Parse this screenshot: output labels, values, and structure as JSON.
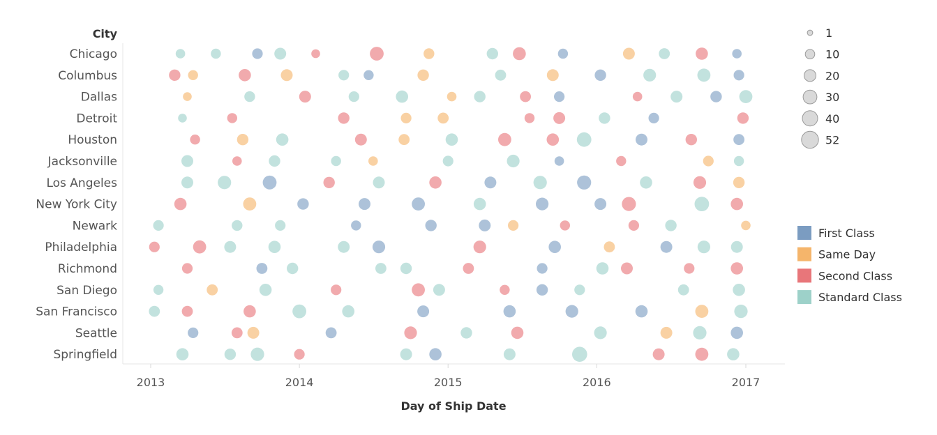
{
  "chart_data": {
    "type": "scatter",
    "title": "",
    "row_axis_title": "City",
    "xlabel": "Day of Ship Date",
    "x_ticks": [
      "2013",
      "2014",
      "2015",
      "2016",
      "2017"
    ],
    "xlim": [
      "2013-01-01",
      "2017-01-01"
    ],
    "rows": [
      "Chicago",
      "Columbus",
      "Dallas",
      "Detroit",
      "Houston",
      "Jacksonville",
      "Los Angeles",
      "New York City",
      "Newark",
      "Philadelphia",
      "Richmond",
      "San Diego",
      "San Francisco",
      "Seattle",
      "Springfield"
    ],
    "size_legend": [
      1,
      10,
      20,
      30,
      40,
      52
    ],
    "color_legend": [
      {
        "name": "First Class",
        "color": "#7b9cc1"
      },
      {
        "name": "Same Day",
        "color": "#f5b56b"
      },
      {
        "name": "Second Class",
        "color": "#e8767a"
      },
      {
        "name": "Standard Class",
        "color": "#9dd1c9"
      }
    ],
    "marks_note": "each point: [row index, date, ship mode index, size value]",
    "points": [
      [
        0,
        "2013-03-15",
        3,
        10
      ],
      [
        0,
        "2013-06-10",
        3,
        12
      ],
      [
        0,
        "2013-09-20",
        0,
        14
      ],
      [
        0,
        "2013-11-15",
        3,
        20
      ],
      [
        0,
        "2014-02-10",
        2,
        8
      ],
      [
        0,
        "2014-07-10",
        2,
        30
      ],
      [
        0,
        "2014-11-15",
        1,
        15
      ],
      [
        0,
        "2015-04-20",
        3,
        18
      ],
      [
        0,
        "2015-06-25",
        2,
        25
      ],
      [
        0,
        "2015-10-10",
        0,
        12
      ],
      [
        0,
        "2016-03-20",
        1,
        20
      ],
      [
        0,
        "2016-06-15",
        3,
        16
      ],
      [
        0,
        "2016-09-15",
        2,
        22
      ],
      [
        0,
        "2016-12-10",
        0,
        10
      ],
      [
        1,
        "2013-03-01",
        2,
        18
      ],
      [
        1,
        "2013-04-15",
        1,
        12
      ],
      [
        1,
        "2013-08-20",
        2,
        22
      ],
      [
        1,
        "2013-12-01",
        1,
        20
      ],
      [
        1,
        "2014-04-20",
        3,
        14
      ],
      [
        1,
        "2014-06-20",
        0,
        12
      ],
      [
        1,
        "2014-11-01",
        1,
        18
      ],
      [
        1,
        "2015-05-10",
        3,
        16
      ],
      [
        1,
        "2015-09-15",
        1,
        20
      ],
      [
        1,
        "2016-01-10",
        0,
        18
      ],
      [
        1,
        "2016-05-10",
        3,
        24
      ],
      [
        1,
        "2016-09-20",
        3,
        26
      ],
      [
        1,
        "2016-12-15",
        0,
        14
      ],
      [
        2,
        "2013-04-01",
        1,
        8
      ],
      [
        2,
        "2013-09-01",
        3,
        15
      ],
      [
        2,
        "2014-01-15",
        2,
        20
      ],
      [
        2,
        "2014-05-15",
        3,
        14
      ],
      [
        2,
        "2014-09-10",
        3,
        22
      ],
      [
        2,
        "2015-01-10",
        1,
        10
      ],
      [
        2,
        "2015-03-20",
        3,
        18
      ],
      [
        2,
        "2015-07-10",
        2,
        16
      ],
      [
        2,
        "2015-10-01",
        0,
        14
      ],
      [
        2,
        "2016-04-10",
        2,
        10
      ],
      [
        2,
        "2016-07-15",
        3,
        20
      ],
      [
        2,
        "2016-10-20",
        0,
        18
      ],
      [
        2,
        "2017-01-01",
        3,
        26
      ],
      [
        3,
        "2013-03-20",
        3,
        8
      ],
      [
        3,
        "2013-07-20",
        2,
        12
      ],
      [
        3,
        "2014-04-20",
        2,
        18
      ],
      [
        3,
        "2014-09-20",
        1,
        14
      ],
      [
        3,
        "2014-12-20",
        1,
        16
      ],
      [
        3,
        "2015-07-20",
        2,
        12
      ],
      [
        3,
        "2015-10-01",
        2,
        20
      ],
      [
        3,
        "2016-01-20",
        3,
        18
      ],
      [
        3,
        "2016-05-20",
        0,
        14
      ],
      [
        3,
        "2016-12-25",
        2,
        18
      ],
      [
        4,
        "2013-04-20",
        2,
        12
      ],
      [
        4,
        "2013-08-15",
        1,
        18
      ],
      [
        4,
        "2013-11-20",
        3,
        22
      ],
      [
        4,
        "2014-06-01",
        2,
        20
      ],
      [
        4,
        "2014-09-15",
        1,
        16
      ],
      [
        4,
        "2015-01-10",
        3,
        22
      ],
      [
        4,
        "2015-05-20",
        2,
        26
      ],
      [
        4,
        "2015-09-15",
        2,
        22
      ],
      [
        4,
        "2015-12-01",
        3,
        34
      ],
      [
        4,
        "2016-04-20",
        0,
        20
      ],
      [
        4,
        "2016-08-20",
        2,
        18
      ],
      [
        4,
        "2016-12-15",
        0,
        16
      ],
      [
        5,
        "2013-04-01",
        3,
        20
      ],
      [
        5,
        "2013-08-01",
        2,
        10
      ],
      [
        5,
        "2013-11-01",
        3,
        18
      ],
      [
        5,
        "2014-04-01",
        3,
        12
      ],
      [
        5,
        "2014-07-01",
        1,
        10
      ],
      [
        5,
        "2015-01-01",
        3,
        14
      ],
      [
        5,
        "2015-06-10",
        3,
        24
      ],
      [
        5,
        "2015-10-01",
        0,
        10
      ],
      [
        5,
        "2016-03-01",
        2,
        12
      ],
      [
        5,
        "2016-10-01",
        1,
        14
      ],
      [
        5,
        "2016-12-15",
        3,
        12
      ],
      [
        6,
        "2013-04-01",
        3,
        20
      ],
      [
        6,
        "2013-07-01",
        3,
        28
      ],
      [
        6,
        "2013-10-20",
        0,
        30
      ],
      [
        6,
        "2014-03-15",
        2,
        18
      ],
      [
        6,
        "2014-07-15",
        3,
        20
      ],
      [
        6,
        "2014-12-01",
        2,
        22
      ],
      [
        6,
        "2015-04-15",
        0,
        20
      ],
      [
        6,
        "2015-08-15",
        3,
        28
      ],
      [
        6,
        "2015-12-01",
        0,
        32
      ],
      [
        6,
        "2016-05-01",
        3,
        22
      ],
      [
        6,
        "2016-09-10",
        2,
        24
      ],
      [
        6,
        "2016-12-15",
        1,
        18
      ],
      [
        7,
        "2013-03-15",
        2,
        22
      ],
      [
        7,
        "2013-09-01",
        1,
        26
      ],
      [
        7,
        "2014-01-10",
        0,
        18
      ],
      [
        7,
        "2014-06-10",
        0,
        20
      ],
      [
        7,
        "2014-10-20",
        0,
        26
      ],
      [
        7,
        "2015-03-20",
        3,
        22
      ],
      [
        7,
        "2015-08-20",
        0,
        24
      ],
      [
        7,
        "2016-01-10",
        0,
        20
      ],
      [
        7,
        "2016-03-20",
        2,
        32
      ],
      [
        7,
        "2016-09-15",
        3,
        34
      ],
      [
        7,
        "2016-12-10",
        2,
        22
      ],
      [
        8,
        "2013-01-20",
        3,
        14
      ],
      [
        8,
        "2013-08-01",
        3,
        15
      ],
      [
        8,
        "2013-11-15",
        3,
        14
      ],
      [
        8,
        "2014-05-20",
        0,
        12
      ],
      [
        8,
        "2014-11-20",
        0,
        18
      ],
      [
        8,
        "2015-04-01",
        0,
        20
      ],
      [
        8,
        "2015-06-10",
        1,
        14
      ],
      [
        8,
        "2015-10-15",
        2,
        12
      ],
      [
        8,
        "2016-04-01",
        2,
        14
      ],
      [
        8,
        "2016-07-01",
        3,
        18
      ],
      [
        8,
        "2017-01-01",
        1,
        10
      ],
      [
        9,
        "2013-01-10",
        2,
        14
      ],
      [
        9,
        "2013-05-01",
        2,
        26
      ],
      [
        9,
        "2013-07-15",
        3,
        20
      ],
      [
        9,
        "2013-11-01",
        3,
        22
      ],
      [
        9,
        "2014-04-20",
        3,
        20
      ],
      [
        9,
        "2014-07-15",
        0,
        24
      ],
      [
        9,
        "2015-03-20",
        2,
        24
      ],
      [
        9,
        "2015-09-20",
        0,
        22
      ],
      [
        9,
        "2016-02-01",
        1,
        16
      ],
      [
        9,
        "2016-06-20",
        0,
        20
      ],
      [
        9,
        "2016-09-20",
        3,
        24
      ],
      [
        9,
        "2016-12-10",
        3,
        20
      ],
      [
        10,
        "2013-04-01",
        2,
        14
      ],
      [
        10,
        "2013-10-01",
        0,
        16
      ],
      [
        10,
        "2013-12-15",
        3,
        18
      ],
      [
        10,
        "2014-07-20",
        3,
        16
      ],
      [
        10,
        "2014-09-20",
        3,
        18
      ],
      [
        10,
        "2015-02-20",
        2,
        16
      ],
      [
        10,
        "2015-08-20",
        0,
        14
      ],
      [
        10,
        "2016-01-15",
        3,
        22
      ],
      [
        10,
        "2016-03-15",
        2,
        20
      ],
      [
        10,
        "2016-08-15",
        2,
        14
      ],
      [
        10,
        "2016-12-10",
        2,
        22
      ],
      [
        11,
        "2013-01-20",
        3,
        12
      ],
      [
        11,
        "2013-06-01",
        1,
        16
      ],
      [
        11,
        "2013-10-10",
        3,
        22
      ],
      [
        11,
        "2014-04-01",
        2,
        14
      ],
      [
        11,
        "2014-10-20",
        2,
        26
      ],
      [
        11,
        "2014-12-10",
        3,
        20
      ],
      [
        11,
        "2015-05-20",
        2,
        12
      ],
      [
        11,
        "2015-08-20",
        0,
        18
      ],
      [
        11,
        "2015-11-20",
        3,
        14
      ],
      [
        11,
        "2016-08-01",
        3,
        16
      ],
      [
        11,
        "2016-12-15",
        3,
        22
      ],
      [
        12,
        "2013-01-10",
        3,
        16
      ],
      [
        12,
        "2013-04-01",
        2,
        16
      ],
      [
        12,
        "2013-09-01",
        2,
        22
      ],
      [
        12,
        "2014-01-01",
        3,
        30
      ],
      [
        12,
        "2014-05-01",
        3,
        22
      ],
      [
        12,
        "2014-11-01",
        0,
        20
      ],
      [
        12,
        "2015-06-01",
        0,
        22
      ],
      [
        12,
        "2015-11-01",
        0,
        24
      ],
      [
        12,
        "2016-04-20",
        0,
        22
      ],
      [
        12,
        "2016-09-15",
        1,
        26
      ],
      [
        12,
        "2016-12-20",
        3,
        28
      ],
      [
        13,
        "2013-04-15",
        0,
        14
      ],
      [
        13,
        "2013-08-01",
        2,
        16
      ],
      [
        13,
        "2013-09-10",
        1,
        20
      ],
      [
        13,
        "2014-03-20",
        0,
        16
      ],
      [
        13,
        "2014-10-01",
        2,
        24
      ],
      [
        13,
        "2015-02-15",
        3,
        18
      ],
      [
        13,
        "2015-06-20",
        2,
        22
      ],
      [
        13,
        "2016-01-10",
        3,
        24
      ],
      [
        13,
        "2016-06-20",
        1,
        20
      ],
      [
        13,
        "2016-09-10",
        3,
        28
      ],
      [
        13,
        "2016-12-10",
        0,
        22
      ],
      [
        14,
        "2013-03-20",
        3,
        22
      ],
      [
        14,
        "2013-07-15",
        3,
        18
      ],
      [
        14,
        "2013-09-20",
        3,
        28
      ],
      [
        14,
        "2014-01-01",
        2,
        14
      ],
      [
        14,
        "2014-09-20",
        3,
        20
      ],
      [
        14,
        "2014-12-01",
        0,
        22
      ],
      [
        14,
        "2015-06-01",
        3,
        20
      ],
      [
        14,
        "2015-11-20",
        3,
        38
      ],
      [
        14,
        "2016-06-01",
        2,
        20
      ],
      [
        14,
        "2016-09-15",
        2,
        26
      ],
      [
        14,
        "2016-12-01",
        3,
        22
      ]
    ]
  }
}
